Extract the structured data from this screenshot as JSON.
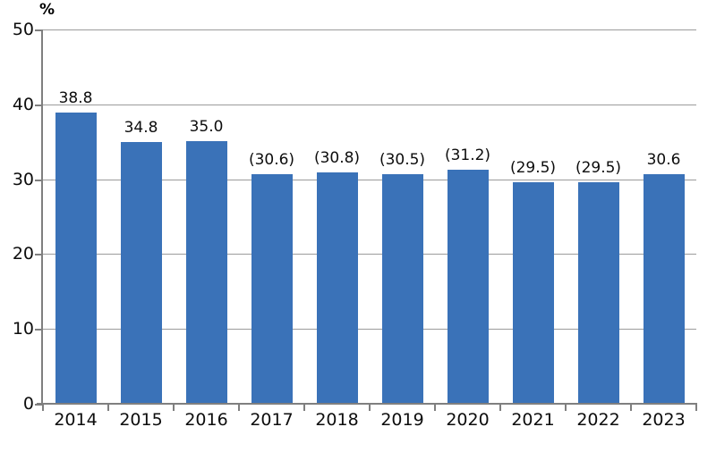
{
  "chart_data": {
    "type": "bar",
    "title": "",
    "xlabel": "",
    "ylabel": "%",
    "categories": [
      "2014",
      "2015",
      "2016",
      "2017",
      "2018",
      "2019",
      "2020",
      "2021",
      "2022",
      "2023"
    ],
    "values": [
      38.8,
      34.8,
      35.0,
      30.6,
      30.8,
      30.5,
      31.2,
      29.5,
      29.5,
      30.6
    ],
    "value_labels": [
      "38.8",
      "34.8",
      "35.0",
      "(30.6)",
      "(30.8)",
      "(30.5)",
      "(31.2)",
      "(29.5)",
      "(29.5)",
      "30.6"
    ],
    "ylim": [
      0,
      50
    ],
    "yticks": [
      0,
      10,
      20,
      30,
      40,
      50
    ],
    "grid": true,
    "legend": "none",
    "bar_color": "#3a72b8",
    "axis_color": "#7f7f7f",
    "gridline_color": "#9b9b9b",
    "text_color": "#0d0d0d"
  }
}
